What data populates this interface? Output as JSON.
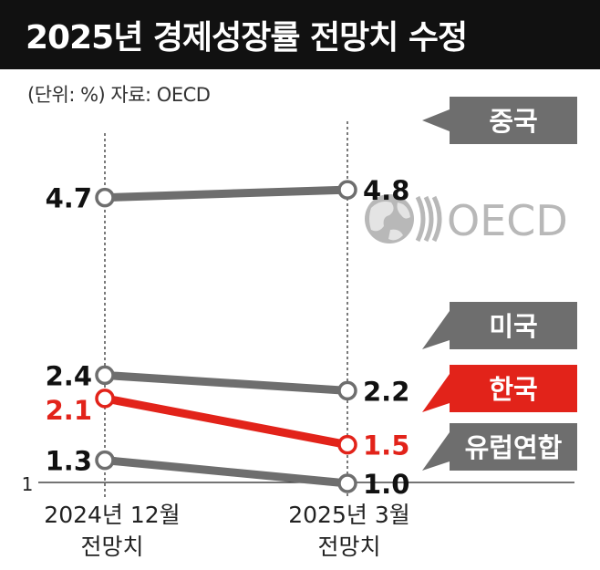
{
  "title": "2025년 경제성장률 전망치 수정",
  "unit_note": "(단위: %) 자료: OECD",
  "logo": {
    "text": "OECD",
    "icon": "globe-icon"
  },
  "colors": {
    "gray_line": "#6e6e6e",
    "gray_tag": "#6e6e6e",
    "korea": "#e2231a",
    "text": "#222222"
  },
  "chart_data": {
    "type": "line",
    "x": [
      "2024년 12월 전망치",
      "2025년 3월 전망치"
    ],
    "x_tick_lines": [
      [
        "2024년 12월",
        "전망치"
      ],
      [
        "2025년 3월",
        "전망치"
      ]
    ],
    "y_axis_label_min": "1",
    "ylim": [
      1,
      4.8
    ],
    "series": [
      {
        "name": "중국",
        "values": [
          4.7,
          4.8
        ],
        "labels": [
          "4.7",
          "4.8"
        ],
        "highlight": false
      },
      {
        "name": "미국",
        "values": [
          2.4,
          2.2
        ],
        "labels": [
          "2.4",
          "2.2"
        ],
        "highlight": false
      },
      {
        "name": "한국",
        "values": [
          2.1,
          1.5
        ],
        "labels": [
          "2.1",
          "1.5"
        ],
        "highlight": true
      },
      {
        "name": "유럽연합",
        "values": [
          1.3,
          1.0
        ],
        "labels": [
          "1.3",
          "1.0"
        ],
        "highlight": false
      }
    ]
  }
}
